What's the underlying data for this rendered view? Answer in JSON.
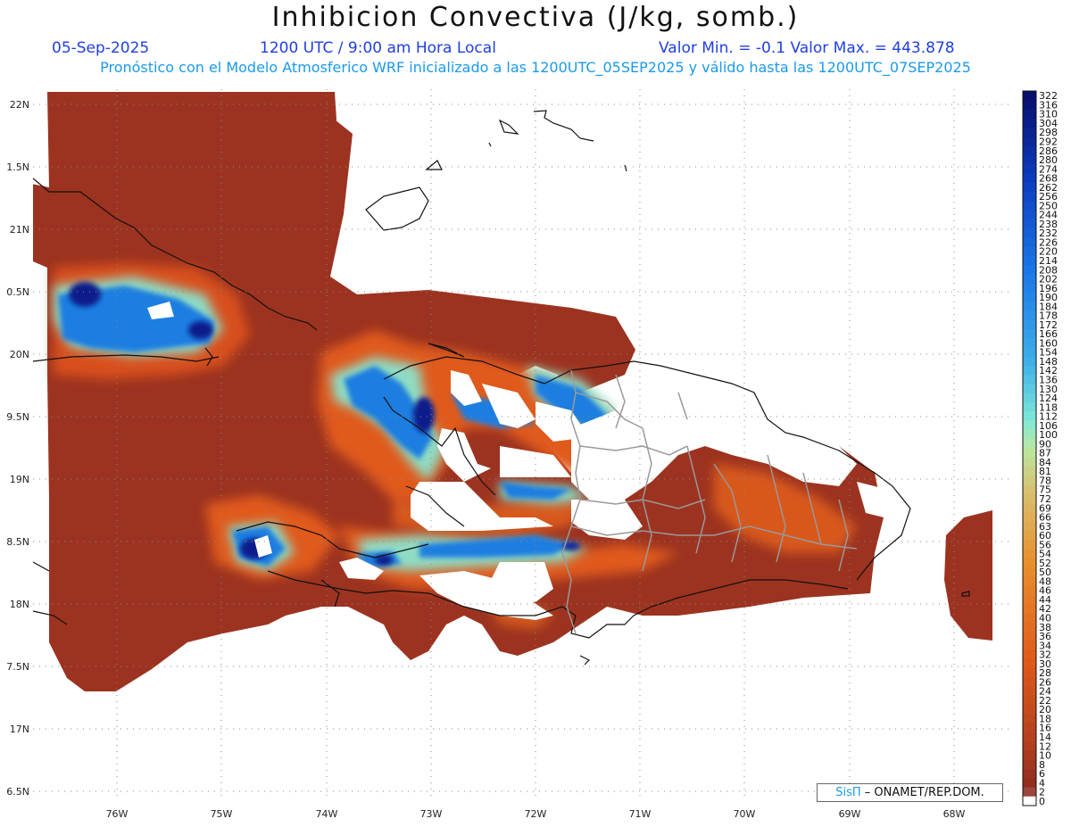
{
  "header": {
    "title": "Inhibicion Convectiva (J/kg, somb.)",
    "date": "05-Sep-2025",
    "time": "1200 UTC / 9:00 am Hora Local",
    "minmax": "Valor Min. = -0.1  Valor Max. = 443.878",
    "forecast": "Pronóstico con el Modelo Atmosferico WRF inicializado a las 1200UTC_05SEP2025 y válido hasta las  1200UTC_07SEP2025"
  },
  "map": {
    "lat_labels": [
      "22N",
      "1.5N",
      "21N",
      "0.5N",
      "20N",
      "9.5N",
      "19N",
      "8.5N",
      "18N",
      "7.5N",
      "17N",
      "6.5N"
    ],
    "lon_labels": [
      "76W",
      "75W",
      "74W",
      "73W",
      "72W",
      "71W",
      "70W",
      "69W",
      "68W"
    ],
    "colorbar_labels": [
      "322",
      "316",
      "310",
      "304",
      "298",
      "292",
      "286",
      "280",
      "274",
      "268",
      "262",
      "256",
      "250",
      "244",
      "238",
      "232",
      "226",
      "220",
      "214",
      "208",
      "202",
      "196",
      "190",
      "184",
      "178",
      "172",
      "166",
      "160",
      "154",
      "148",
      "142",
      "136",
      "130",
      "124",
      "118",
      "112",
      "106",
      "100",
      "90",
      "87",
      "84",
      "81",
      "78",
      "75",
      "72",
      "69",
      "66",
      "63",
      "60",
      "56",
      "54",
      "52",
      "50",
      "48",
      "46",
      "44",
      "42",
      "40",
      "38",
      "36",
      "34",
      "32",
      "30",
      "28",
      "26",
      "24",
      "22",
      "20",
      "18",
      "16",
      "14",
      "12",
      "10",
      "8",
      "6",
      "4",
      "2",
      "0"
    ],
    "colors": {
      "low": "#9c2f1e",
      "mid": "#e0561a",
      "high_green": "#a8e8c0",
      "high_blue": "#1a78e0",
      "max_blue": "#05107a"
    }
  },
  "credit": {
    "brand": "SisΠ",
    "org": "– ONAMET/REP.DOM."
  }
}
